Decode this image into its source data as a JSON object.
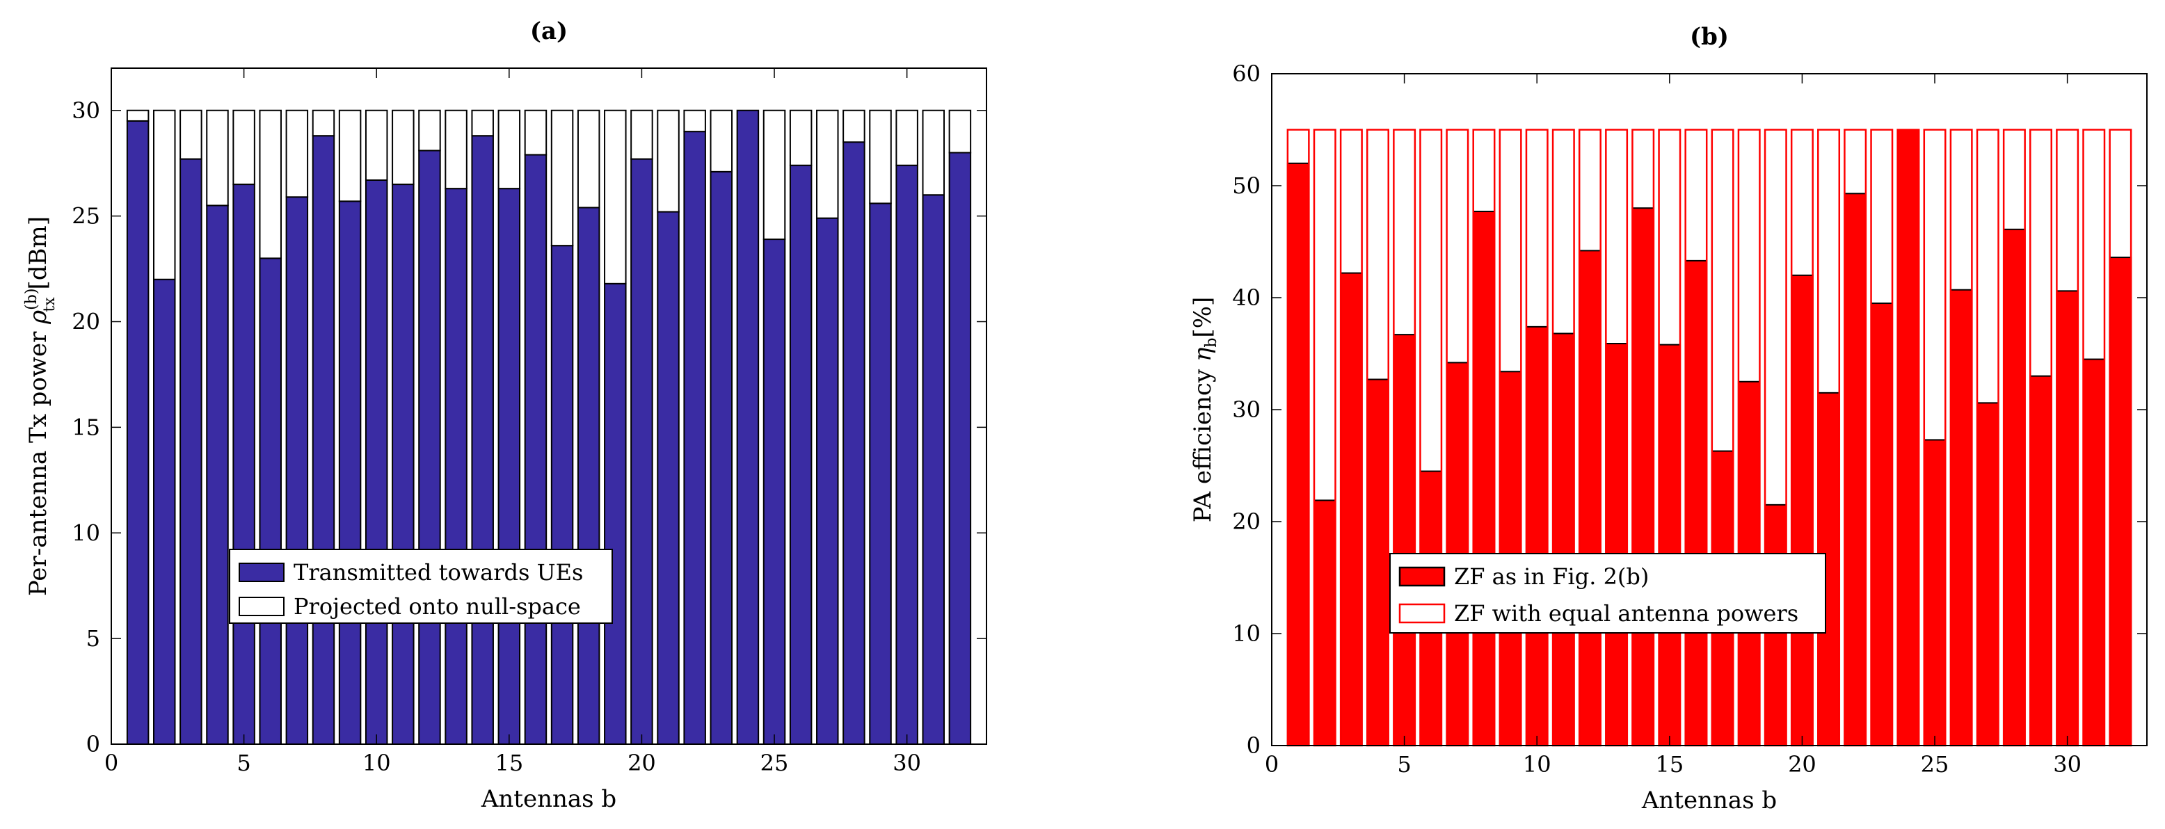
{
  "chart_data": [
    {
      "type": "bar",
      "title": "(a)",
      "xlabel": "Antennas b",
      "ylabel_prefix": "Per-antenna Tx power ",
      "ylabel_symbol": "ρ",
      "ylabel_sup": "(b)",
      "ylabel_sub": "tx",
      "ylabel_suffix": " [dBm]",
      "xlim": [
        0,
        33
      ],
      "ylim": [
        0,
        32
      ],
      "xticks": [
        0,
        5,
        10,
        15,
        20,
        25,
        30
      ],
      "yticks": [
        0,
        5,
        10,
        15,
        20,
        25,
        30
      ],
      "colors": {
        "fill": "#3a2ca3",
        "edge": "#000000"
      },
      "x": [
        1,
        2,
        3,
        4,
        5,
        6,
        7,
        8,
        9,
        10,
        11,
        12,
        13,
        14,
        15,
        16,
        17,
        18,
        19,
        20,
        21,
        22,
        23,
        24,
        25,
        26,
        27,
        28,
        29,
        30,
        31,
        32
      ],
      "series": [
        {
          "name": "Transmitted towards UEs",
          "values": [
            29.5,
            22.0,
            27.7,
            25.5,
            26.5,
            23.0,
            25.9,
            28.8,
            25.7,
            26.7,
            26.5,
            28.1,
            26.3,
            28.8,
            26.3,
            27.9,
            23.6,
            25.4,
            21.8,
            27.7,
            25.2,
            29.0,
            27.1,
            30.0,
            23.9,
            27.4,
            24.9,
            28.5,
            25.6,
            27.4,
            26.0,
            28.0
          ]
        },
        {
          "name": "Projected onto null-space",
          "values": [
            0.5,
            8.0,
            2.3,
            4.5,
            3.5,
            7.0,
            4.1,
            1.2,
            4.3,
            3.3,
            3.5,
            1.9,
            3.7,
            1.2,
            3.7,
            2.1,
            6.4,
            4.6,
            8.2,
            2.3,
            4.8,
            1.0,
            2.9,
            0.0,
            6.1,
            2.6,
            5.1,
            1.5,
            4.4,
            2.6,
            4.0,
            2.0
          ]
        }
      ],
      "legend": [
        "Transmitted towards UEs",
        "Projected onto null-space"
      ]
    },
    {
      "type": "bar",
      "title": "(b)",
      "xlabel": "Antennas b",
      "ylabel_prefix": "PA efficiency ",
      "ylabel_symbol": "η",
      "ylabel_sub": "b",
      "ylabel_suffix": "[%]",
      "xlim": [
        0,
        33
      ],
      "ylim": [
        0,
        60
      ],
      "xticks": [
        0,
        5,
        10,
        15,
        20,
        25,
        30
      ],
      "yticks": [
        0,
        10,
        20,
        30,
        40,
        50,
        60
      ],
      "colors": {
        "fill": "#ff0000",
        "edge": "#000000",
        "outline": "#ff0000"
      },
      "x": [
        1,
        2,
        3,
        4,
        5,
        6,
        7,
        8,
        9,
        10,
        11,
        12,
        13,
        14,
        15,
        16,
        17,
        18,
        19,
        20,
        21,
        22,
        23,
        24,
        25,
        26,
        27,
        28,
        29,
        30,
        31,
        32
      ],
      "series": [
        {
          "name": "ZF as in Fig. 2(b)",
          "values": [
            52.0,
            21.9,
            42.2,
            32.7,
            36.7,
            24.5,
            34.2,
            47.7,
            33.4,
            37.4,
            36.8,
            44.2,
            35.9,
            48.0,
            35.8,
            43.3,
            26.3,
            32.5,
            21.5,
            42.0,
            31.5,
            49.3,
            39.5,
            55.0,
            27.3,
            40.7,
            30.6,
            46.1,
            33.0,
            40.6,
            34.5,
            43.6
          ]
        },
        {
          "name": "ZF with equal antenna powers",
          "values": [
            55,
            55,
            55,
            55,
            55,
            55,
            55,
            55,
            55,
            55,
            55,
            55,
            55,
            55,
            55,
            55,
            55,
            55,
            55,
            55,
            55,
            55,
            55,
            55,
            55,
            55,
            55,
            55,
            55,
            55,
            55,
            55
          ]
        }
      ],
      "legend": [
        "ZF as in Fig. 2(b)",
        "ZF with equal antenna powers"
      ]
    }
  ]
}
